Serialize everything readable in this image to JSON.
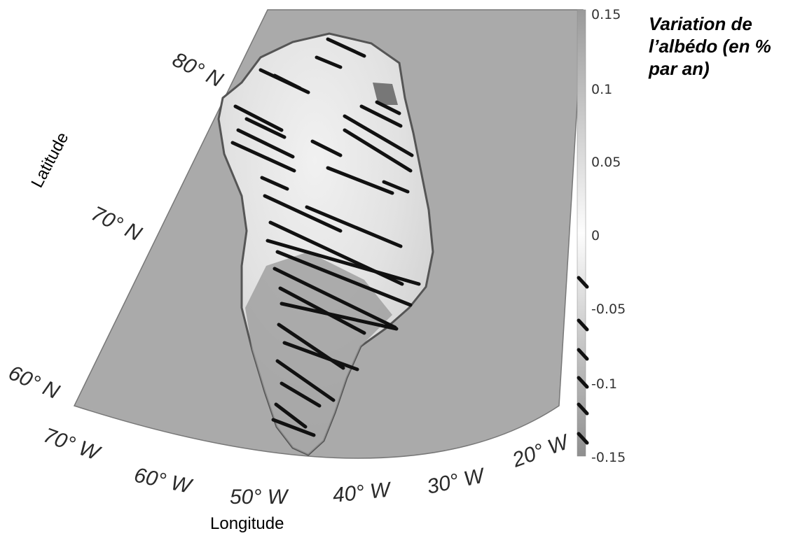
{
  "map": {
    "lat_labels": [
      "80° N",
      "70° N",
      "60° N"
    ],
    "lon_labels": [
      "70° W",
      "60° W",
      "50° W",
      "40° W",
      "30° W",
      "20° W"
    ],
    "axis_x_label": "Longitude",
    "axis_y_label": "Latitude",
    "hatching_meaning": "black diagonal hatching over areas with albedo decrease"
  },
  "colorbar": {
    "title": "Variation de l’albédo (en % par an)",
    "ticks": [
      "0.15",
      "0.1",
      "0.05",
      "0",
      "-0.05",
      "-0.1",
      "-0.15"
    ],
    "range": [
      -0.15,
      0.15
    ],
    "colors": {
      "max": "#9a9a9a",
      "zero": "#fdfdfd",
      "min": "#8f8f8f"
    }
  },
  "colors": {
    "ocean": "#aaaaaa",
    "ice_bright": "#ededed",
    "ice_dark": "#999999",
    "hatch": "#111111"
  }
}
